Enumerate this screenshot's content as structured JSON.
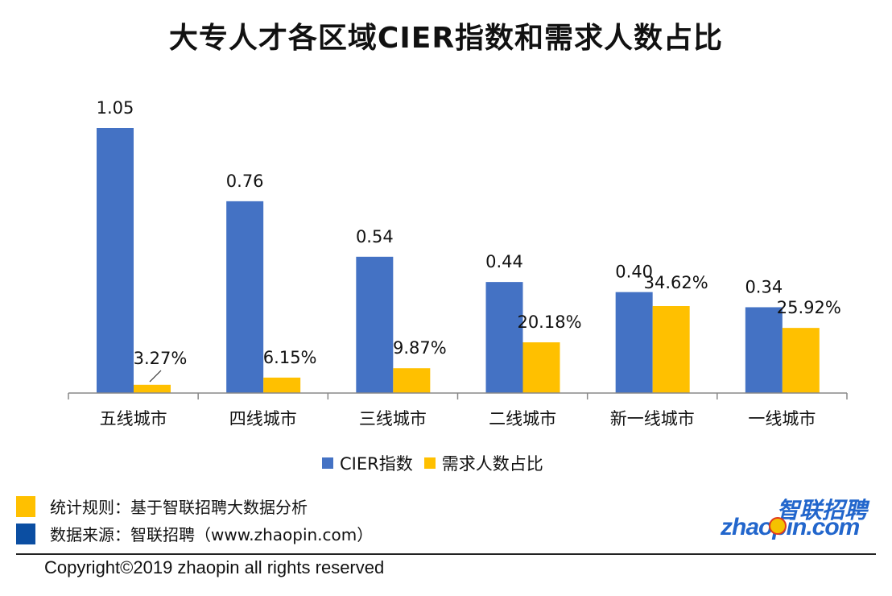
{
  "title": "大专人才各区域CIER指数和需求人数占比",
  "chart_data": {
    "type": "bar",
    "categories": [
      "五线城市",
      "四线城市",
      "三线城市",
      "二线城市",
      "新一线城市",
      "一线城市"
    ],
    "series": [
      {
        "name": "CIER指数",
        "values": [
          1.05,
          0.76,
          0.54,
          0.44,
          0.4,
          0.34
        ],
        "labels": [
          "1.05",
          "0.76",
          "0.54",
          "0.44",
          "0.40",
          "0.34"
        ],
        "color": "#4472C4"
      },
      {
        "name": "需求人数占比",
        "values": [
          3.27,
          6.15,
          9.87,
          20.18,
          34.62,
          25.92
        ],
        "labels": [
          "3.27%",
          "6.15%",
          "9.87%",
          "20.18%",
          "34.62%",
          "25.92%"
        ],
        "color": "#FFC000"
      }
    ],
    "legend_position": "bottom",
    "grid": false
  },
  "notes": [
    {
      "text": "统计规则：基于智联招聘大数据分析",
      "color": "#FFC000"
    },
    {
      "text": "数据来源：智联招聘（www.zhaopin.com）",
      "color": "#0B4EA2"
    }
  ],
  "logo": {
    "cn": "智联招聘",
    "en": "zhaopin.com"
  },
  "copyright": "Copyright©2019 zhaopin all rights reserved"
}
